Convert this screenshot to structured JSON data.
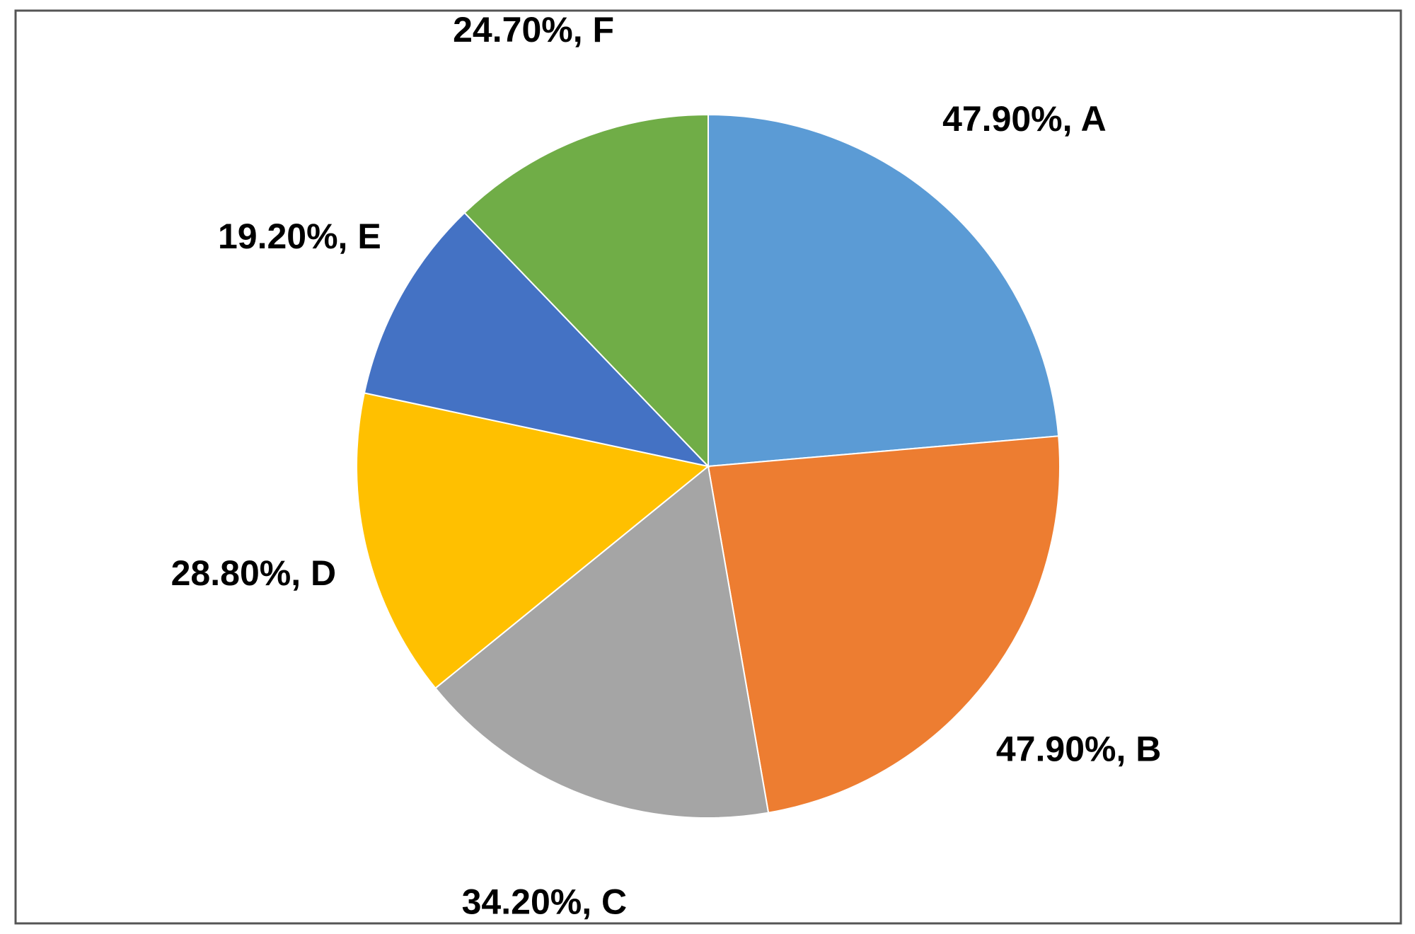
{
  "chart_data": {
    "type": "pie",
    "values": [
      47.9,
      47.9,
      34.2,
      28.8,
      19.2,
      24.7
    ],
    "value_labels": [
      "47.90%, A",
      "47.90%, B",
      "34.20%, C",
      "28.80%, D",
      "19.20%, E",
      "24.70%, F"
    ],
    "colors": [
      "#5b9bd5",
      "#ed7d31",
      "#a5a5a5",
      "#ffc000",
      "#4472c4",
      "#70ad47"
    ]
  }
}
